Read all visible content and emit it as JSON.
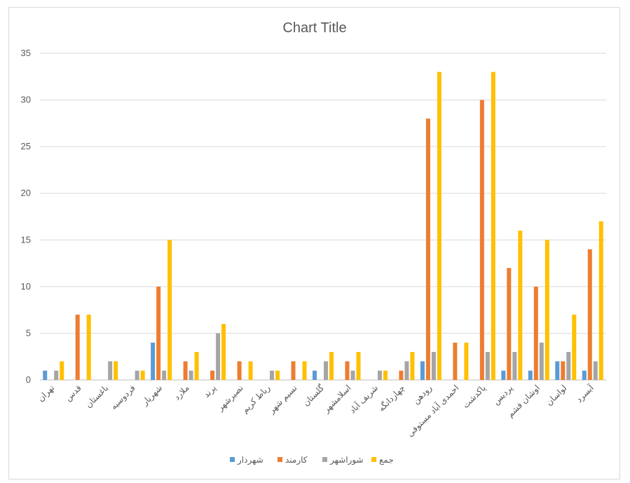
{
  "chart_data": {
    "type": "bar",
    "title": "Chart Title",
    "xlabel": "",
    "ylabel": "",
    "ylim": [
      0,
      35
    ],
    "yticks": [
      0,
      5,
      10,
      15,
      20,
      25,
      30,
      35
    ],
    "grid": true,
    "legend_position": "bottom",
    "categories": [
      "تهران",
      "قدس",
      "باغستان",
      "فردوسیه",
      "شهریار",
      "ملارد",
      "پرند",
      "نصیرشهر",
      "رباط کریم",
      "نسیم شهر",
      "گلستان",
      "اسلامشهر",
      "شریف آباد",
      "چهاردانگه",
      "رودهن",
      "احمدی آباد مستوفی",
      "پاکدشت",
      "پردیس",
      "اوشان فشم",
      "لواسان",
      "آبسرد"
    ],
    "series": [
      {
        "name": "شهردار",
        "color": "#5b9bd5",
        "values": [
          1,
          0,
          0,
          0,
          4,
          0,
          0,
          0,
          0,
          0,
          1,
          0,
          0,
          0,
          2,
          0,
          0,
          1,
          1,
          2,
          1
        ]
      },
      {
        "name": "کارمند",
        "color": "#ed7d31",
        "values": [
          0,
          7,
          0,
          0,
          10,
          2,
          1,
          2,
          0,
          2,
          0,
          2,
          0,
          1,
          28,
          4,
          30,
          12,
          10,
          2,
          14
        ]
      },
      {
        "name": "شوراشهر",
        "color": "#a5a5a5",
        "values": [
          1,
          0,
          2,
          1,
          1,
          1,
          5,
          0,
          1,
          0,
          2,
          1,
          1,
          2,
          3,
          0,
          3,
          3,
          4,
          3,
          2
        ]
      },
      {
        "name": "جمع",
        "color": "#ffc000",
        "values": [
          2,
          7,
          2,
          1,
          15,
          3,
          6,
          2,
          1,
          2,
          3,
          3,
          1,
          3,
          33,
          4,
          33,
          16,
          15,
          7,
          17
        ]
      }
    ]
  }
}
